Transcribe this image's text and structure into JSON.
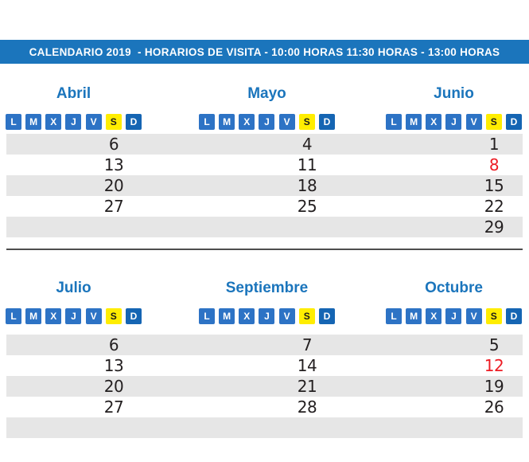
{
  "banner": {
    "text": "CALENDARIO 2019  - HORARIOS DE VISITA - 10:00 HORAS 11:30 HORAS - 13:00 HORAS",
    "background": "#1b75bc",
    "text_color": "#ffffff"
  },
  "days": [
    "L",
    "M",
    "X",
    "J",
    "V",
    "S",
    "D"
  ],
  "colors": {
    "weekday_tile": "#2d73c5",
    "saturday_tile": "#ffed00",
    "sunday_tile": "#1565b3",
    "row_alternate": "#e6e6e6",
    "date_default": "#231f20",
    "date_special": "#ed1c24",
    "title_blue": "#1b75bc",
    "divider": "#4d4d4d"
  },
  "sections": [
    {
      "months": [
        {
          "name": "Abril",
          "cells": [
            {
              "text": "6",
              "color": "#231f20"
            },
            {
              "text": "13",
              "color": "#231f20"
            },
            {
              "text": "20",
              "color": "#231f20"
            },
            {
              "text": "27",
              "color": "#231f20"
            },
            {
              "text": "",
              "color": "#231f20"
            }
          ]
        },
        {
          "name": "Mayo",
          "cells": [
            {
              "text": "4",
              "color": "#231f20"
            },
            {
              "text": "11",
              "color": "#231f20"
            },
            {
              "text": "18",
              "color": "#231f20"
            },
            {
              "text": "25",
              "color": "#231f20"
            },
            {
              "text": "",
              "color": "#231f20"
            }
          ]
        },
        {
          "name": "Junio",
          "cells": [
            {
              "text": "1",
              "color": "#231f20"
            },
            {
              "text": "8",
              "color": "#ed1c24"
            },
            {
              "text": "15",
              "color": "#231f20"
            },
            {
              "text": "22",
              "color": "#231f20"
            },
            {
              "text": "29",
              "color": "#231f20"
            }
          ]
        }
      ]
    },
    {
      "months": [
        {
          "name": "Julio",
          "cells": [
            {
              "text": "6",
              "color": "#231f20"
            },
            {
              "text": "13",
              "color": "#231f20"
            },
            {
              "text": "20",
              "color": "#231f20"
            },
            {
              "text": "27",
              "color": "#231f20"
            },
            {
              "text": "",
              "color": "#231f20"
            }
          ]
        },
        {
          "name": "Septiembre",
          "cells": [
            {
              "text": "7",
              "color": "#231f20"
            },
            {
              "text": "14",
              "color": "#231f20"
            },
            {
              "text": "21",
              "color": "#231f20"
            },
            {
              "text": "28",
              "color": "#231f20"
            },
            {
              "text": "",
              "color": "#231f20"
            }
          ]
        },
        {
          "name": "Octubre",
          "cells": [
            {
              "text": "5",
              "color": "#231f20"
            },
            {
              "text": "12",
              "color": "#ed1c24"
            },
            {
              "text": "19",
              "color": "#231f20"
            },
            {
              "text": "26",
              "color": "#231f20"
            },
            {
              "text": "",
              "color": "#231f20"
            }
          ]
        }
      ]
    }
  ]
}
